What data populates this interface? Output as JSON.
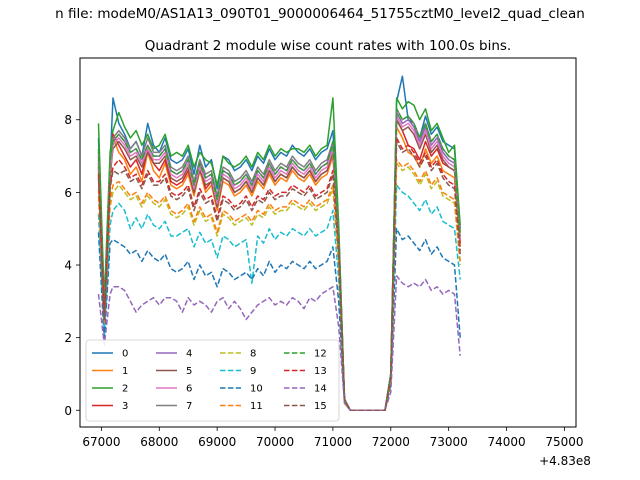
{
  "suptitle": "n file: modeM0/AS1A13_090T01_9000006464_51755cztM0_level2_quad_clean",
  "chart_data": {
    "type": "line",
    "title": "Quadrant 2 module wise count rates with 100.0s bins.",
    "xlabel": "",
    "ylabel": "",
    "x_offset_label": "+4.83e8",
    "xlim": [
      66630,
      75200
    ],
    "ylim": [
      -0.46,
      9.7
    ],
    "xticks": [
      67000,
      68000,
      69000,
      70000,
      71000,
      72000,
      73000,
      74000,
      75000
    ],
    "yticks": [
      0,
      2,
      4,
      6,
      8
    ],
    "grid": false,
    "legend_position": "lower-left",
    "legend_columns": 4,
    "series": [
      {
        "name": "0",
        "color": "#1f77b4",
        "dash": "solid",
        "values": [
          7.5,
          2.8,
          6.8,
          8.6,
          7.9,
          7.6,
          7.2,
          7.4,
          7.0,
          7.9,
          7.3,
          7.1,
          7.5,
          6.9,
          6.8,
          6.9,
          7.2,
          6.5,
          7.3,
          6.7,
          6.9,
          6.1,
          7.0,
          6.9,
          6.6,
          6.7,
          6.9,
          6.6,
          7.0,
          6.8,
          7.2,
          6.9,
          7.1,
          7.0,
          7.3,
          7.1,
          7.0,
          7.2,
          6.9,
          7.1,
          7.2,
          7.7,
          5.0,
          0.3,
          0.0,
          0.0,
          0.0,
          0.0,
          0.0,
          0.0,
          0.0,
          1.0,
          8.5,
          9.2,
          8.0,
          7.9,
          7.5,
          8.1,
          7.6,
          7.8,
          7.4,
          7.3,
          7.2,
          5.0
        ]
      },
      {
        "name": "1",
        "color": "#ff7f0e",
        "dash": "solid",
        "values": [
          6.6,
          2.4,
          6.2,
          7.5,
          7.1,
          6.9,
          6.5,
          6.7,
          6.3,
          7.1,
          6.6,
          6.4,
          6.8,
          6.2,
          6.1,
          6.2,
          6.5,
          5.9,
          6.6,
          6.0,
          6.2,
          5.5,
          6.3,
          6.2,
          5.9,
          6.0,
          6.2,
          5.9,
          6.3,
          6.1,
          6.5,
          6.2,
          6.4,
          6.3,
          6.6,
          6.4,
          6.3,
          6.5,
          6.2,
          6.4,
          6.5,
          7.0,
          4.5,
          0.3,
          0.0,
          0.0,
          0.0,
          0.0,
          0.0,
          0.0,
          0.0,
          0.9,
          7.8,
          7.5,
          7.1,
          7.0,
          6.7,
          7.2,
          6.8,
          7.0,
          6.6,
          6.5,
          6.4,
          4.5
        ]
      },
      {
        "name": "2",
        "color": "#2ca02c",
        "dash": "solid",
        "values": [
          7.9,
          3.0,
          7.1,
          7.7,
          8.2,
          7.8,
          7.5,
          7.7,
          7.3,
          7.6,
          7.2,
          7.3,
          7.6,
          7.0,
          7.1,
          7.0,
          7.3,
          6.7,
          7.1,
          6.9,
          6.8,
          6.2,
          7.0,
          6.8,
          6.7,
          6.8,
          7.0,
          6.7,
          7.1,
          6.9,
          7.3,
          7.0,
          7.2,
          7.1,
          7.2,
          7.2,
          7.1,
          7.3,
          7.0,
          7.2,
          7.3,
          8.6,
          5.1,
          0.3,
          0.0,
          0.0,
          0.0,
          0.0,
          0.0,
          0.0,
          0.0,
          1.0,
          8.6,
          8.3,
          8.5,
          8.4,
          8.0,
          8.3,
          7.7,
          7.9,
          7.5,
          7.1,
          7.3,
          5.1
        ]
      },
      {
        "name": "3",
        "color": "#d62728",
        "dash": "solid",
        "values": [
          6.7,
          2.6,
          6.4,
          7.6,
          7.3,
          7.0,
          6.7,
          6.9,
          6.5,
          7.2,
          6.8,
          6.6,
          6.9,
          6.3,
          6.2,
          6.3,
          6.6,
          6.0,
          6.7,
          6.1,
          6.3,
          5.6,
          6.4,
          6.3,
          6.0,
          6.1,
          6.3,
          6.0,
          6.4,
          6.2,
          6.6,
          6.3,
          6.5,
          6.4,
          6.7,
          6.5,
          6.4,
          6.6,
          6.3,
          6.5,
          6.6,
          7.1,
          4.6,
          0.3,
          0.0,
          0.0,
          0.0,
          0.0,
          0.0,
          0.0,
          0.0,
          0.9,
          8.0,
          7.7,
          7.3,
          7.2,
          6.9,
          7.4,
          7.0,
          7.2,
          6.8,
          6.7,
          6.6,
          4.6
        ]
      },
      {
        "name": "4",
        "color": "#9467bd",
        "dash": "solid",
        "values": [
          7.0,
          2.7,
          6.6,
          7.4,
          7.6,
          7.4,
          7.1,
          7.2,
          6.9,
          7.3,
          7.0,
          7.0,
          7.2,
          6.6,
          6.5,
          6.6,
          6.9,
          6.2,
          6.8,
          6.4,
          6.5,
          5.8,
          6.6,
          6.5,
          6.2,
          6.3,
          6.5,
          6.2,
          6.6,
          6.4,
          6.8,
          6.5,
          6.7,
          6.6,
          6.9,
          6.7,
          6.6,
          6.8,
          6.5,
          6.7,
          6.8,
          7.3,
          4.8,
          0.3,
          0.0,
          0.0,
          0.0,
          0.0,
          0.0,
          0.0,
          0.0,
          1.0,
          8.2,
          7.9,
          8.0,
          7.8,
          7.4,
          7.8,
          7.3,
          7.5,
          7.1,
          6.9,
          6.8,
          4.8
        ]
      },
      {
        "name": "5",
        "color": "#8c564b",
        "dash": "solid",
        "values": [
          6.8,
          2.6,
          6.5,
          7.2,
          7.4,
          7.2,
          6.9,
          7.0,
          6.7,
          7.1,
          6.8,
          6.8,
          7.0,
          6.4,
          6.3,
          6.4,
          6.7,
          6.0,
          6.6,
          6.2,
          6.3,
          5.6,
          6.4,
          6.3,
          6.0,
          6.1,
          6.3,
          6.0,
          6.4,
          6.2,
          6.6,
          6.3,
          6.5,
          6.4,
          6.7,
          6.5,
          6.4,
          6.6,
          6.3,
          6.5,
          6.6,
          7.1,
          4.7,
          0.3,
          0.0,
          0.0,
          0.0,
          0.0,
          0.0,
          0.0,
          0.0,
          1.0,
          8.0,
          7.7,
          7.8,
          7.6,
          7.2,
          7.6,
          7.1,
          7.3,
          6.9,
          6.7,
          6.6,
          4.7
        ]
      },
      {
        "name": "6",
        "color": "#e377c2",
        "dash": "solid",
        "values": [
          6.9,
          2.7,
          6.6,
          7.3,
          7.5,
          7.3,
          7.0,
          7.1,
          6.8,
          7.2,
          6.9,
          6.9,
          7.1,
          6.5,
          6.4,
          6.5,
          6.8,
          6.1,
          6.7,
          6.3,
          6.4,
          5.7,
          6.5,
          6.4,
          6.1,
          6.2,
          6.4,
          6.1,
          6.5,
          6.3,
          6.7,
          6.4,
          6.6,
          6.5,
          6.8,
          6.6,
          6.5,
          6.7,
          6.4,
          6.6,
          6.7,
          7.2,
          4.7,
          0.3,
          0.0,
          0.0,
          0.0,
          0.0,
          0.0,
          0.0,
          0.0,
          1.0,
          8.1,
          7.8,
          7.9,
          7.7,
          7.3,
          7.7,
          7.2,
          7.4,
          7.0,
          6.8,
          6.7,
          4.7
        ]
      },
      {
        "name": "7",
        "color": "#7f7f7f",
        "dash": "solid",
        "values": [
          7.1,
          2.8,
          6.8,
          7.5,
          7.7,
          7.5,
          7.2,
          7.4,
          7.0,
          7.5,
          7.1,
          7.1,
          7.3,
          6.7,
          6.6,
          6.7,
          7.0,
          6.3,
          6.9,
          6.5,
          6.6,
          5.9,
          6.7,
          6.6,
          6.3,
          6.4,
          6.6,
          6.3,
          6.7,
          6.5,
          6.9,
          6.6,
          6.8,
          6.7,
          7.0,
          6.8,
          6.7,
          6.9,
          6.6,
          6.8,
          6.9,
          7.4,
          4.9,
          0.3,
          0.0,
          0.0,
          0.0,
          0.0,
          0.0,
          0.0,
          0.0,
          1.0,
          8.3,
          8.0,
          8.1,
          7.9,
          7.5,
          7.9,
          7.4,
          7.6,
          7.2,
          7.0,
          6.9,
          4.9
        ]
      },
      {
        "name": "8",
        "color": "#bcbd22",
        "dash": "dashed",
        "values": [
          5.9,
          2.3,
          5.6,
          6.0,
          6.2,
          6.0,
          5.8,
          5.9,
          5.6,
          5.9,
          5.7,
          5.6,
          5.8,
          5.4,
          5.3,
          5.4,
          5.6,
          5.1,
          5.5,
          5.2,
          5.3,
          4.8,
          5.4,
          5.3,
          5.1,
          5.2,
          5.3,
          5.1,
          5.4,
          5.3,
          5.6,
          5.4,
          5.5,
          5.5,
          5.7,
          5.6,
          5.5,
          5.7,
          5.5,
          5.6,
          5.7,
          6.1,
          4.0,
          0.2,
          0.0,
          0.0,
          0.0,
          0.0,
          0.0,
          0.0,
          0.0,
          0.8,
          6.8,
          6.6,
          6.7,
          6.5,
          6.2,
          6.5,
          6.1,
          6.3,
          5.9,
          5.8,
          5.7,
          4.0
        ]
      },
      {
        "name": "9",
        "color": "#17becf",
        "dash": "dashed",
        "values": [
          5.4,
          2.1,
          5.1,
          5.5,
          5.7,
          5.5,
          5.0,
          5.3,
          5.0,
          5.4,
          5.1,
          5.0,
          5.2,
          4.8,
          4.8,
          4.9,
          5.0,
          4.5,
          4.9,
          4.6,
          4.7,
          4.2,
          4.8,
          4.7,
          4.5,
          4.6,
          4.7,
          3.5,
          4.8,
          4.6,
          5.0,
          4.7,
          4.9,
          4.8,
          5.0,
          4.9,
          4.8,
          5.0,
          4.8,
          4.9,
          5.0,
          5.5,
          3.6,
          0.2,
          0.0,
          0.0,
          0.0,
          0.0,
          0.0,
          0.0,
          0.0,
          0.8,
          6.2,
          6.0,
          5.9,
          5.7,
          5.5,
          5.8,
          5.4,
          5.6,
          5.2,
          5.1,
          5.0,
          3.6
        ]
      },
      {
        "name": "10",
        "color": "#1f77b4",
        "dash": "dashed",
        "values": [
          4.9,
          1.9,
          4.6,
          4.7,
          4.6,
          4.5,
          4.3,
          4.4,
          4.1,
          4.4,
          4.2,
          4.1,
          4.3,
          3.9,
          3.8,
          3.9,
          4.1,
          3.6,
          4.0,
          3.7,
          3.8,
          3.4,
          3.9,
          3.8,
          3.6,
          3.7,
          3.8,
          3.6,
          3.9,
          3.7,
          4.1,
          3.8,
          4.0,
          3.9,
          4.1,
          4.0,
          3.9,
          4.1,
          3.9,
          4.0,
          4.1,
          4.5,
          3.0,
          0.2,
          0.0,
          0.0,
          0.0,
          0.0,
          0.0,
          0.0,
          0.0,
          0.7,
          5.0,
          4.7,
          4.8,
          4.6,
          4.4,
          4.7,
          4.3,
          4.5,
          4.2,
          4.1,
          4.0,
          2.0
        ]
      },
      {
        "name": "11",
        "color": "#ff7f0e",
        "dash": "dashed",
        "values": [
          6.1,
          2.4,
          5.8,
          6.2,
          6.3,
          6.1,
          5.9,
          6.0,
          5.7,
          6.0,
          5.8,
          5.7,
          5.9,
          5.5,
          5.4,
          5.5,
          5.7,
          5.2,
          5.6,
          5.3,
          5.4,
          4.9,
          5.5,
          5.4,
          5.2,
          5.3,
          5.4,
          5.2,
          5.5,
          5.4,
          5.7,
          5.5,
          5.6,
          5.6,
          5.8,
          5.7,
          5.6,
          5.8,
          5.6,
          5.7,
          5.8,
          6.2,
          4.1,
          0.2,
          0.0,
          0.0,
          0.0,
          0.0,
          0.0,
          0.0,
          0.0,
          0.8,
          6.9,
          6.7,
          6.8,
          6.6,
          6.3,
          6.6,
          6.2,
          6.4,
          6.0,
          5.9,
          5.8,
          4.1
        ]
      },
      {
        "name": "12",
        "color": "#2ca02c",
        "dash": "dashed",
        "values": [
          7.2,
          2.8,
          6.9,
          7.4,
          7.6,
          7.4,
          7.1,
          7.2,
          6.9,
          7.3,
          7.0,
          7.0,
          7.2,
          6.6,
          6.5,
          6.6,
          6.9,
          6.2,
          6.8,
          6.4,
          6.5,
          5.8,
          6.6,
          6.5,
          6.2,
          6.3,
          6.5,
          6.2,
          6.6,
          6.4,
          6.8,
          6.5,
          6.7,
          6.6,
          6.9,
          6.7,
          6.6,
          6.8,
          6.5,
          6.7,
          6.8,
          7.4,
          4.8,
          0.3,
          0.0,
          0.0,
          0.0,
          0.0,
          0.0,
          0.0,
          0.0,
          1.0,
          8.3,
          8.0,
          8.1,
          7.9,
          7.5,
          7.9,
          7.4,
          7.6,
          7.2,
          7.0,
          6.9,
          4.8
        ]
      },
      {
        "name": "13",
        "color": "#d62728",
        "dash": "dashed",
        "values": [
          6.5,
          2.5,
          6.2,
          6.7,
          6.9,
          6.7,
          6.4,
          6.5,
          6.2,
          6.6,
          6.3,
          6.3,
          6.5,
          6.0,
          5.9,
          6.0,
          6.2,
          5.6,
          6.1,
          5.8,
          5.9,
          5.3,
          5.9,
          5.8,
          5.6,
          5.7,
          5.9,
          5.6,
          5.9,
          5.8,
          6.1,
          5.9,
          6.0,
          6.0,
          6.2,
          6.1,
          6.0,
          6.2,
          5.9,
          6.0,
          6.1,
          6.6,
          4.4,
          0.3,
          0.0,
          0.0,
          0.0,
          0.0,
          0.0,
          0.0,
          0.0,
          0.9,
          7.5,
          7.2,
          7.3,
          7.1,
          6.8,
          7.1,
          6.7,
          6.9,
          6.5,
          6.3,
          6.2,
          4.4
        ]
      },
      {
        "name": "14",
        "color": "#9467bd",
        "dash": "dashed",
        "values": [
          3.2,
          1.8,
          3.2,
          3.4,
          3.4,
          3.3,
          3.0,
          2.7,
          2.9,
          3.0,
          3.1,
          2.9,
          3.1,
          3.1,
          3.0,
          2.7,
          3.1,
          2.9,
          3.0,
          2.9,
          2.7,
          3.0,
          3.1,
          2.8,
          3.0,
          2.8,
          2.5,
          2.7,
          2.9,
          3.0,
          3.1,
          2.9,
          3.0,
          2.9,
          3.1,
          3.0,
          2.8,
          3.1,
          3.0,
          3.2,
          3.3,
          3.4,
          2.3,
          0.2,
          0.0,
          0.0,
          0.0,
          0.0,
          0.0,
          0.0,
          0.0,
          0.5,
          3.7,
          3.5,
          3.4,
          3.5,
          3.4,
          3.6,
          3.3,
          3.4,
          3.2,
          3.3,
          3.2,
          1.5
        ]
      },
      {
        "name": "15",
        "color": "#8c564b",
        "dash": "dashed",
        "values": [
          6.4,
          2.5,
          6.1,
          6.6,
          6.5,
          6.6,
          6.3,
          6.4,
          6.1,
          6.5,
          6.2,
          6.2,
          6.4,
          5.9,
          5.8,
          5.9,
          6.1,
          5.5,
          6.0,
          5.7,
          5.8,
          5.2,
          5.8,
          5.7,
          5.5,
          5.6,
          5.8,
          5.5,
          5.8,
          5.7,
          6.0,
          5.8,
          5.9,
          5.9,
          6.1,
          6.0,
          5.9,
          6.1,
          5.8,
          5.9,
          6.0,
          6.5,
          4.3,
          0.3,
          0.0,
          0.0,
          0.0,
          0.0,
          0.0,
          0.0,
          0.0,
          0.9,
          7.4,
          7.1,
          7.2,
          7.0,
          6.7,
          7.0,
          6.6,
          6.8,
          6.4,
          6.2,
          6.1,
          4.3
        ]
      }
    ],
    "x": [
      66950,
      67050,
      67150,
      67200,
      67300,
      67400,
      67500,
      67600,
      67700,
      67800,
      67900,
      68000,
      68100,
      68200,
      68300,
      68400,
      68500,
      68600,
      68700,
      68800,
      68900,
      69000,
      69100,
      69200,
      69300,
      69400,
      69500,
      69600,
      69700,
      69800,
      69900,
      70000,
      70100,
      70200,
      70300,
      70400,
      70500,
      70600,
      70700,
      70800,
      70900,
      71000,
      71100,
      71200,
      71300,
      71400,
      71500,
      71600,
      71700,
      71800,
      71900,
      72000,
      72100,
      72200,
      72300,
      72400,
      72500,
      72600,
      72700,
      72800,
      72900,
      73000,
      73100,
      73200
    ]
  }
}
